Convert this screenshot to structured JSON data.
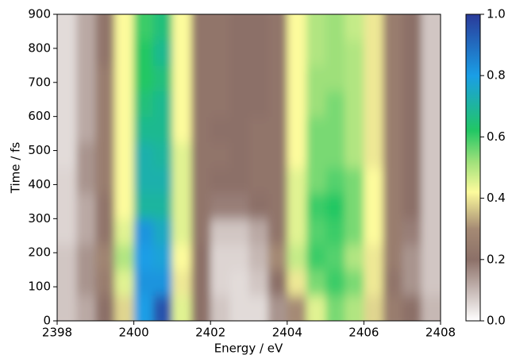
{
  "chart_data": {
    "type": "heatmap",
    "xlabel": "Energy / eV",
    "ylabel": "Time / fs",
    "x": [
      2398.25,
      2398.75,
      2399.25,
      2399.75,
      2400.25,
      2400.75,
      2401.25,
      2401.75,
      2402.25,
      2402.75,
      2403.25,
      2403.75,
      2404.25,
      2404.75,
      2405.25,
      2405.75,
      2406.25,
      2406.75,
      2407.25,
      2407.75
    ],
    "y": [
      37.5,
      112.5,
      187.5,
      262.5,
      337.5,
      412.5,
      487.5,
      562.5,
      637.5,
      712.5,
      787.5,
      862.5
    ],
    "values": [
      [
        0.08,
        0.12,
        0.2,
        0.38,
        0.8,
        0.95,
        0.45,
        0.2,
        0.08,
        0.05,
        0.05,
        0.15,
        0.3,
        0.45,
        0.55,
        0.5,
        0.38,
        0.25,
        0.2,
        0.1
      ],
      [
        0.08,
        0.15,
        0.25,
        0.45,
        0.82,
        0.82,
        0.4,
        0.2,
        0.06,
        0.05,
        0.08,
        0.2,
        0.4,
        0.55,
        0.6,
        0.55,
        0.4,
        0.22,
        0.15,
        0.08
      ],
      [
        0.08,
        0.15,
        0.28,
        0.5,
        0.8,
        0.78,
        0.42,
        0.2,
        0.06,
        0.06,
        0.1,
        0.3,
        0.48,
        0.6,
        0.58,
        0.5,
        0.4,
        0.25,
        0.15,
        0.08
      ],
      [
        0.06,
        0.12,
        0.22,
        0.45,
        0.82,
        0.75,
        0.45,
        0.22,
        0.08,
        0.08,
        0.12,
        0.22,
        0.45,
        0.58,
        0.6,
        0.55,
        0.42,
        0.25,
        0.18,
        0.08
      ],
      [
        0.06,
        0.12,
        0.22,
        0.42,
        0.7,
        0.7,
        0.45,
        0.22,
        0.18,
        0.18,
        0.2,
        0.22,
        0.45,
        0.6,
        0.62,
        0.55,
        0.42,
        0.25,
        0.2,
        0.08
      ],
      [
        0.06,
        0.15,
        0.25,
        0.42,
        0.72,
        0.72,
        0.45,
        0.22,
        0.2,
        0.2,
        0.22,
        0.22,
        0.45,
        0.55,
        0.58,
        0.55,
        0.42,
        0.25,
        0.2,
        0.08
      ],
      [
        0.05,
        0.15,
        0.25,
        0.42,
        0.72,
        0.7,
        0.45,
        0.22,
        0.22,
        0.2,
        0.22,
        0.22,
        0.42,
        0.55,
        0.55,
        0.5,
        0.4,
        0.25,
        0.2,
        0.08
      ],
      [
        0.05,
        0.12,
        0.25,
        0.42,
        0.68,
        0.68,
        0.42,
        0.22,
        0.2,
        0.2,
        0.22,
        0.22,
        0.42,
        0.55,
        0.55,
        0.5,
        0.4,
        0.25,
        0.2,
        0.08
      ],
      [
        0.05,
        0.12,
        0.25,
        0.42,
        0.65,
        0.68,
        0.42,
        0.22,
        0.22,
        0.2,
        0.2,
        0.22,
        0.42,
        0.52,
        0.55,
        0.5,
        0.4,
        0.25,
        0.2,
        0.08
      ],
      [
        0.05,
        0.12,
        0.25,
        0.42,
        0.62,
        0.65,
        0.42,
        0.22,
        0.22,
        0.2,
        0.2,
        0.22,
        0.42,
        0.52,
        0.52,
        0.5,
        0.4,
        0.25,
        0.2,
        0.08
      ],
      [
        0.05,
        0.12,
        0.22,
        0.42,
        0.62,
        0.68,
        0.42,
        0.22,
        0.22,
        0.2,
        0.2,
        0.22,
        0.42,
        0.5,
        0.52,
        0.5,
        0.4,
        0.25,
        0.2,
        0.08
      ],
      [
        0.05,
        0.12,
        0.22,
        0.42,
        0.6,
        0.65,
        0.42,
        0.22,
        0.22,
        0.2,
        0.2,
        0.22,
        0.42,
        0.5,
        0.52,
        0.48,
        0.4,
        0.25,
        0.2,
        0.08
      ]
    ],
    "xlim": [
      2398,
      2408
    ],
    "xticks": [
      2398,
      2400,
      2402,
      2404,
      2406,
      2408
    ],
    "ylim": [
      0,
      900
    ],
    "yticks": [
      0,
      100,
      200,
      300,
      400,
      500,
      600,
      700,
      800,
      900
    ],
    "clim": [
      0,
      1
    ],
    "cticks": [
      {
        "value": 0,
        "label": "0.0"
      },
      0.2,
      0.4,
      0.6,
      0.8,
      {
        "value": 1,
        "label": "1.0"
      }
    ],
    "colormap": [
      {
        "value": 0,
        "color": "#ffffff"
      },
      {
        "value": 0.2,
        "color": "#8c7068"
      },
      {
        "value": 0.3,
        "color": "#a58a74"
      },
      {
        "value": 0.42,
        "color": "#fdfb9c"
      },
      {
        "value": 0.52,
        "color": "#9ee07a"
      },
      {
        "value": 0.62,
        "color": "#22c764"
      },
      {
        "value": 0.8,
        "color": "#1a9ee6"
      },
      {
        "value": 1,
        "color": "#2a3a99"
      }
    ]
  }
}
